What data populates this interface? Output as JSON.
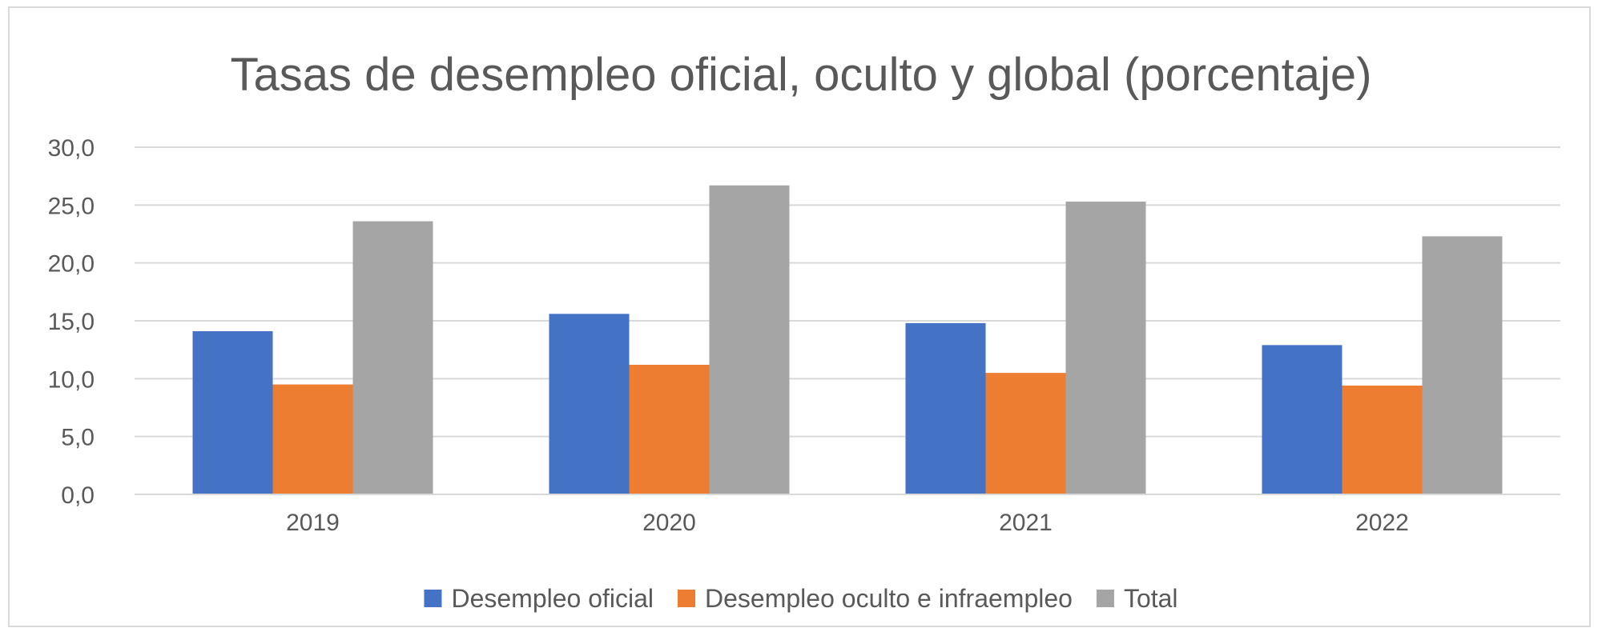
{
  "chart_data": {
    "type": "bar",
    "title": "Tasas de desempleo oficial, oculto y global (porcentaje)",
    "categories": [
      "2019",
      "2020",
      "2021",
      "2022"
    ],
    "series": [
      {
        "name": "Desempleo oficial",
        "color": "#4472c4",
        "values": [
          14.1,
          15.6,
          14.8,
          12.9
        ]
      },
      {
        "name": "Desempleo oculto e infraempleo",
        "color": "#ed7d31",
        "values": [
          9.5,
          11.2,
          10.5,
          9.4
        ]
      },
      {
        "name": "Total",
        "color": "#a5a5a5",
        "values": [
          23.6,
          26.7,
          25.3,
          22.3
        ]
      }
    ],
    "ylim": [
      0,
      30
    ],
    "yticks": [
      "0,0",
      "5,0",
      "10,0",
      "15,0",
      "20,0",
      "25,0",
      "30,0"
    ],
    "grid": true,
    "legend_position": "bottom"
  }
}
